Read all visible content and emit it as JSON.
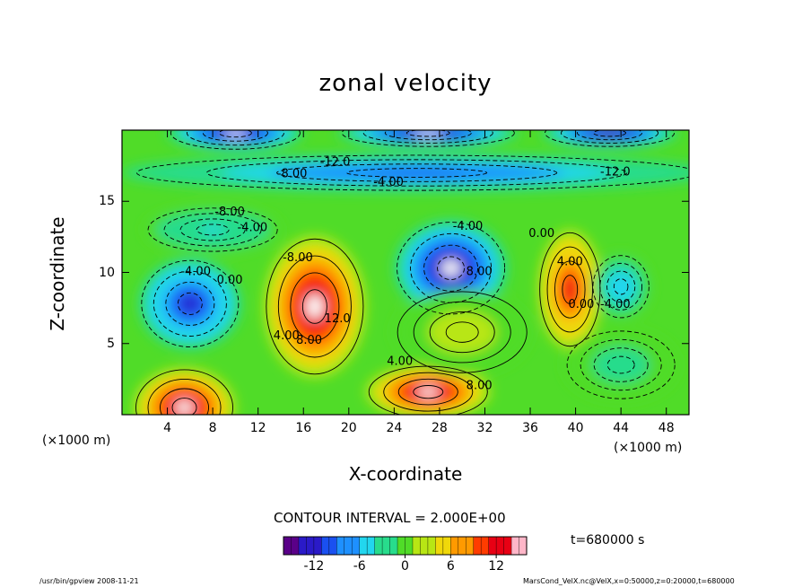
{
  "chart_data": {
    "type": "heatmap",
    "title": "zonal velocity",
    "xlabel": "X-coordinate",
    "ylabel": "Z-coordinate",
    "x_unit_label": "(×1000 m)",
    "x_ticks": [
      4,
      8,
      12,
      16,
      20,
      24,
      28,
      32,
      36,
      40,
      44,
      48
    ],
    "y_ticks": [
      5,
      10,
      15
    ],
    "xlim": [
      0,
      50
    ],
    "ylim": [
      0,
      20
    ],
    "contour_interval_text": "CONTOUR INTERVAL = 2.000E+00",
    "time_text": "t=680000 s",
    "colorbar": {
      "range": [
        -16,
        16
      ],
      "ticks": [
        -12,
        -6,
        0,
        6,
        12
      ],
      "colors": [
        "#5a0088",
        "#2a1ac8",
        "#1a50f0",
        "#1e90ff",
        "#22d6ee",
        "#28dc8c",
        "#50dc28",
        "#b8e614",
        "#f0d80a",
        "#ff9a00",
        "#ff3c00",
        "#e80014",
        "#ffb6c8"
      ]
    },
    "contour_labels": [
      {
        "text": "-12.0",
        "x": 18.8,
        "y": 17.5
      },
      {
        "text": "-8.00",
        "x": 15.0,
        "y": 16.7
      },
      {
        "text": "-4.00",
        "x": 23.5,
        "y": 16.1
      },
      {
        "text": "-12.0",
        "x": 43.5,
        "y": 16.8
      },
      {
        "text": "-8.00",
        "x": 9.5,
        "y": 14.0
      },
      {
        "text": "-4.00",
        "x": 11.5,
        "y": 12.9
      },
      {
        "text": "-8.00",
        "x": 15.5,
        "y": 10.8
      },
      {
        "text": "-4.00",
        "x": 6.5,
        "y": 9.8
      },
      {
        "text": "0.00",
        "x": 9.5,
        "y": 9.2
      },
      {
        "text": "-4.00",
        "x": 30.5,
        "y": 13.0
      },
      {
        "text": "8.00",
        "x": 31.5,
        "y": 9.8
      },
      {
        "text": "0.00",
        "x": 37.0,
        "y": 12.5
      },
      {
        "text": "4.00",
        "x": 39.5,
        "y": 10.5
      },
      {
        "text": "0.00",
        "x": 40.5,
        "y": 7.5
      },
      {
        "text": "-4.00",
        "x": 43.5,
        "y": 7.5
      },
      {
        "text": "12.0",
        "x": 19.0,
        "y": 6.5
      },
      {
        "text": "8.00",
        "x": 16.5,
        "y": 5.0
      },
      {
        "text": "4.00",
        "x": 14.5,
        "y": 5.3
      },
      {
        "text": "4.00",
        "x": 24.5,
        "y": 3.5
      },
      {
        "text": "8.00",
        "x": 31.5,
        "y": 1.8
      }
    ],
    "field_blobs": [
      {
        "x": 5.5,
        "y": 0.5,
        "v": 16,
        "rx": 4.5,
        "ry": 2.8
      },
      {
        "x": 27,
        "y": 1.6,
        "v": 16,
        "rx": 5.5,
        "ry": 1.9
      },
      {
        "x": 17,
        "y": 7.6,
        "v": 16,
        "rx": 4.5,
        "ry": 5.0
      },
      {
        "x": 39.5,
        "y": 8.8,
        "v": 12,
        "rx": 2.8,
        "ry": 4.2
      },
      {
        "x": 6,
        "y": 7.8,
        "v": -12,
        "rx": 4.5,
        "ry": 3.2
      },
      {
        "x": 29,
        "y": 10.3,
        "v": -16,
        "rx": 5.0,
        "ry": 3.4
      },
      {
        "x": 44,
        "y": 9.0,
        "v": -6,
        "rx": 2.6,
        "ry": 2.3
      },
      {
        "x": 26,
        "y": 17.0,
        "v": -10,
        "rx": 26,
        "ry": 1.3
      },
      {
        "x": 10,
        "y": 19.8,
        "v": -16,
        "rx": 6,
        "ry": 1.2
      },
      {
        "x": 27,
        "y": 19.8,
        "v": -16,
        "rx": 8,
        "ry": 1.0
      },
      {
        "x": 43,
        "y": 19.8,
        "v": -14,
        "rx": 6,
        "ry": 1.0
      },
      {
        "x": 8,
        "y": 13.0,
        "v": -4,
        "rx": 6,
        "ry": 1.6
      },
      {
        "x": 30,
        "y": 5.8,
        "v": 2,
        "rx": 6,
        "ry": 3
      },
      {
        "x": 44,
        "y": 3.5,
        "v": -2,
        "rx": 5,
        "ry": 2.5
      }
    ]
  },
  "footer": {
    "left": "/usr/bin/gpview   2008-11-21",
    "right": "MarsCond_VelX.nc@VelX,x=0:50000,z=0:20000,t=680000"
  }
}
